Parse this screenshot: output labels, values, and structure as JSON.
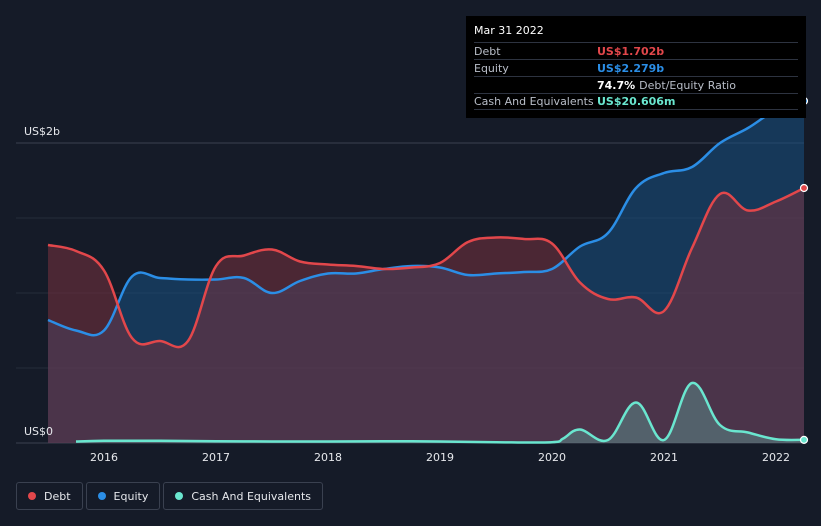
{
  "colors": {
    "debt": "#e2474b",
    "equity": "#2b8ee6",
    "cash": "#6ae6cf",
    "background": "#151b28"
  },
  "tooltip": {
    "date": "Mar 31 2022",
    "rows": [
      {
        "label": "Debt",
        "value": "US$1.702b",
        "color": "#e2474b"
      },
      {
        "label": "Equity",
        "value": "US$2.279b",
        "color": "#2b8ee6"
      },
      {
        "label": "",
        "value": "74.7%",
        "extra": "Debt/Equity Ratio",
        "color": "#ffffff"
      },
      {
        "label": "Cash And Equivalents",
        "value": "US$20.606m",
        "color": "#6ae6cf"
      }
    ]
  },
  "legend": [
    {
      "label": "Debt",
      "color": "#e2474b"
    },
    {
      "label": "Equity",
      "color": "#2b8ee6"
    },
    {
      "label": "Cash And Equivalents",
      "color": "#6ae6cf"
    }
  ],
  "chart_data": {
    "type": "area",
    "title": "",
    "xlabel": "",
    "ylabel": "",
    "y_axis_labels": [
      "US$2b",
      "US$0"
    ],
    "x_tick_labels": [
      "2016",
      "2017",
      "2018",
      "2019",
      "2020",
      "2021",
      "2022"
    ],
    "x_ticks": [
      2016,
      2017,
      2018,
      2019,
      2020,
      2021,
      2022
    ],
    "xlim": [
      2015.5,
      2022.25
    ],
    "ylim": [
      0,
      2.4
    ],
    "units": "US$ billions",
    "grid": true,
    "series": [
      {
        "name": "Debt",
        "x": [
          2015.5,
          2015.75,
          2016.0,
          2016.25,
          2016.5,
          2016.75,
          2017.0,
          2017.25,
          2017.5,
          2017.75,
          2018.0,
          2018.25,
          2018.5,
          2018.75,
          2019.0,
          2019.25,
          2019.5,
          2019.75,
          2020.0,
          2020.25,
          2020.5,
          2020.75,
          2021.0,
          2021.25,
          2021.5,
          2021.75,
          2022.0,
          2022.25
        ],
        "values": [
          1.32,
          1.28,
          1.15,
          0.7,
          0.68,
          0.68,
          1.18,
          1.25,
          1.29,
          1.21,
          1.19,
          1.18,
          1.16,
          1.17,
          1.2,
          1.34,
          1.37,
          1.36,
          1.33,
          1.07,
          0.96,
          0.97,
          0.88,
          1.3,
          1.66,
          1.55,
          1.61,
          1.7
        ]
      },
      {
        "name": "Equity",
        "x": [
          2015.5,
          2015.75,
          2016.0,
          2016.25,
          2016.5,
          2016.75,
          2017.0,
          2017.25,
          2017.5,
          2017.75,
          2018.0,
          2018.25,
          2018.5,
          2018.75,
          2019.0,
          2019.25,
          2019.5,
          2019.75,
          2020.0,
          2020.25,
          2020.5,
          2020.75,
          2021.0,
          2021.25,
          2021.5,
          2021.75,
          2022.0,
          2022.25
        ],
        "values": [
          0.82,
          0.75,
          0.75,
          1.11,
          1.1,
          1.09,
          1.09,
          1.1,
          1.0,
          1.08,
          1.13,
          1.13,
          1.16,
          1.18,
          1.17,
          1.12,
          1.13,
          1.14,
          1.16,
          1.31,
          1.4,
          1.7,
          1.8,
          1.84,
          2.0,
          2.1,
          2.22,
          2.28
        ]
      },
      {
        "name": "Cash And Equivalents",
        "x": [
          2015.75,
          2016.0,
          2016.5,
          2017.0,
          2017.5,
          2018.0,
          2018.5,
          2019.0,
          2019.5,
          2020.0,
          2020.1,
          2020.25,
          2020.5,
          2020.75,
          2021.0,
          2021.25,
          2021.5,
          2021.75,
          2022.0,
          2022.25
        ],
        "values": [
          0.01,
          0.015,
          0.015,
          0.012,
          0.01,
          0.01,
          0.012,
          0.01,
          0.005,
          0.005,
          0.03,
          0.09,
          0.02,
          0.27,
          0.02,
          0.4,
          0.12,
          0.07,
          0.025,
          0.021
        ]
      }
    ]
  }
}
